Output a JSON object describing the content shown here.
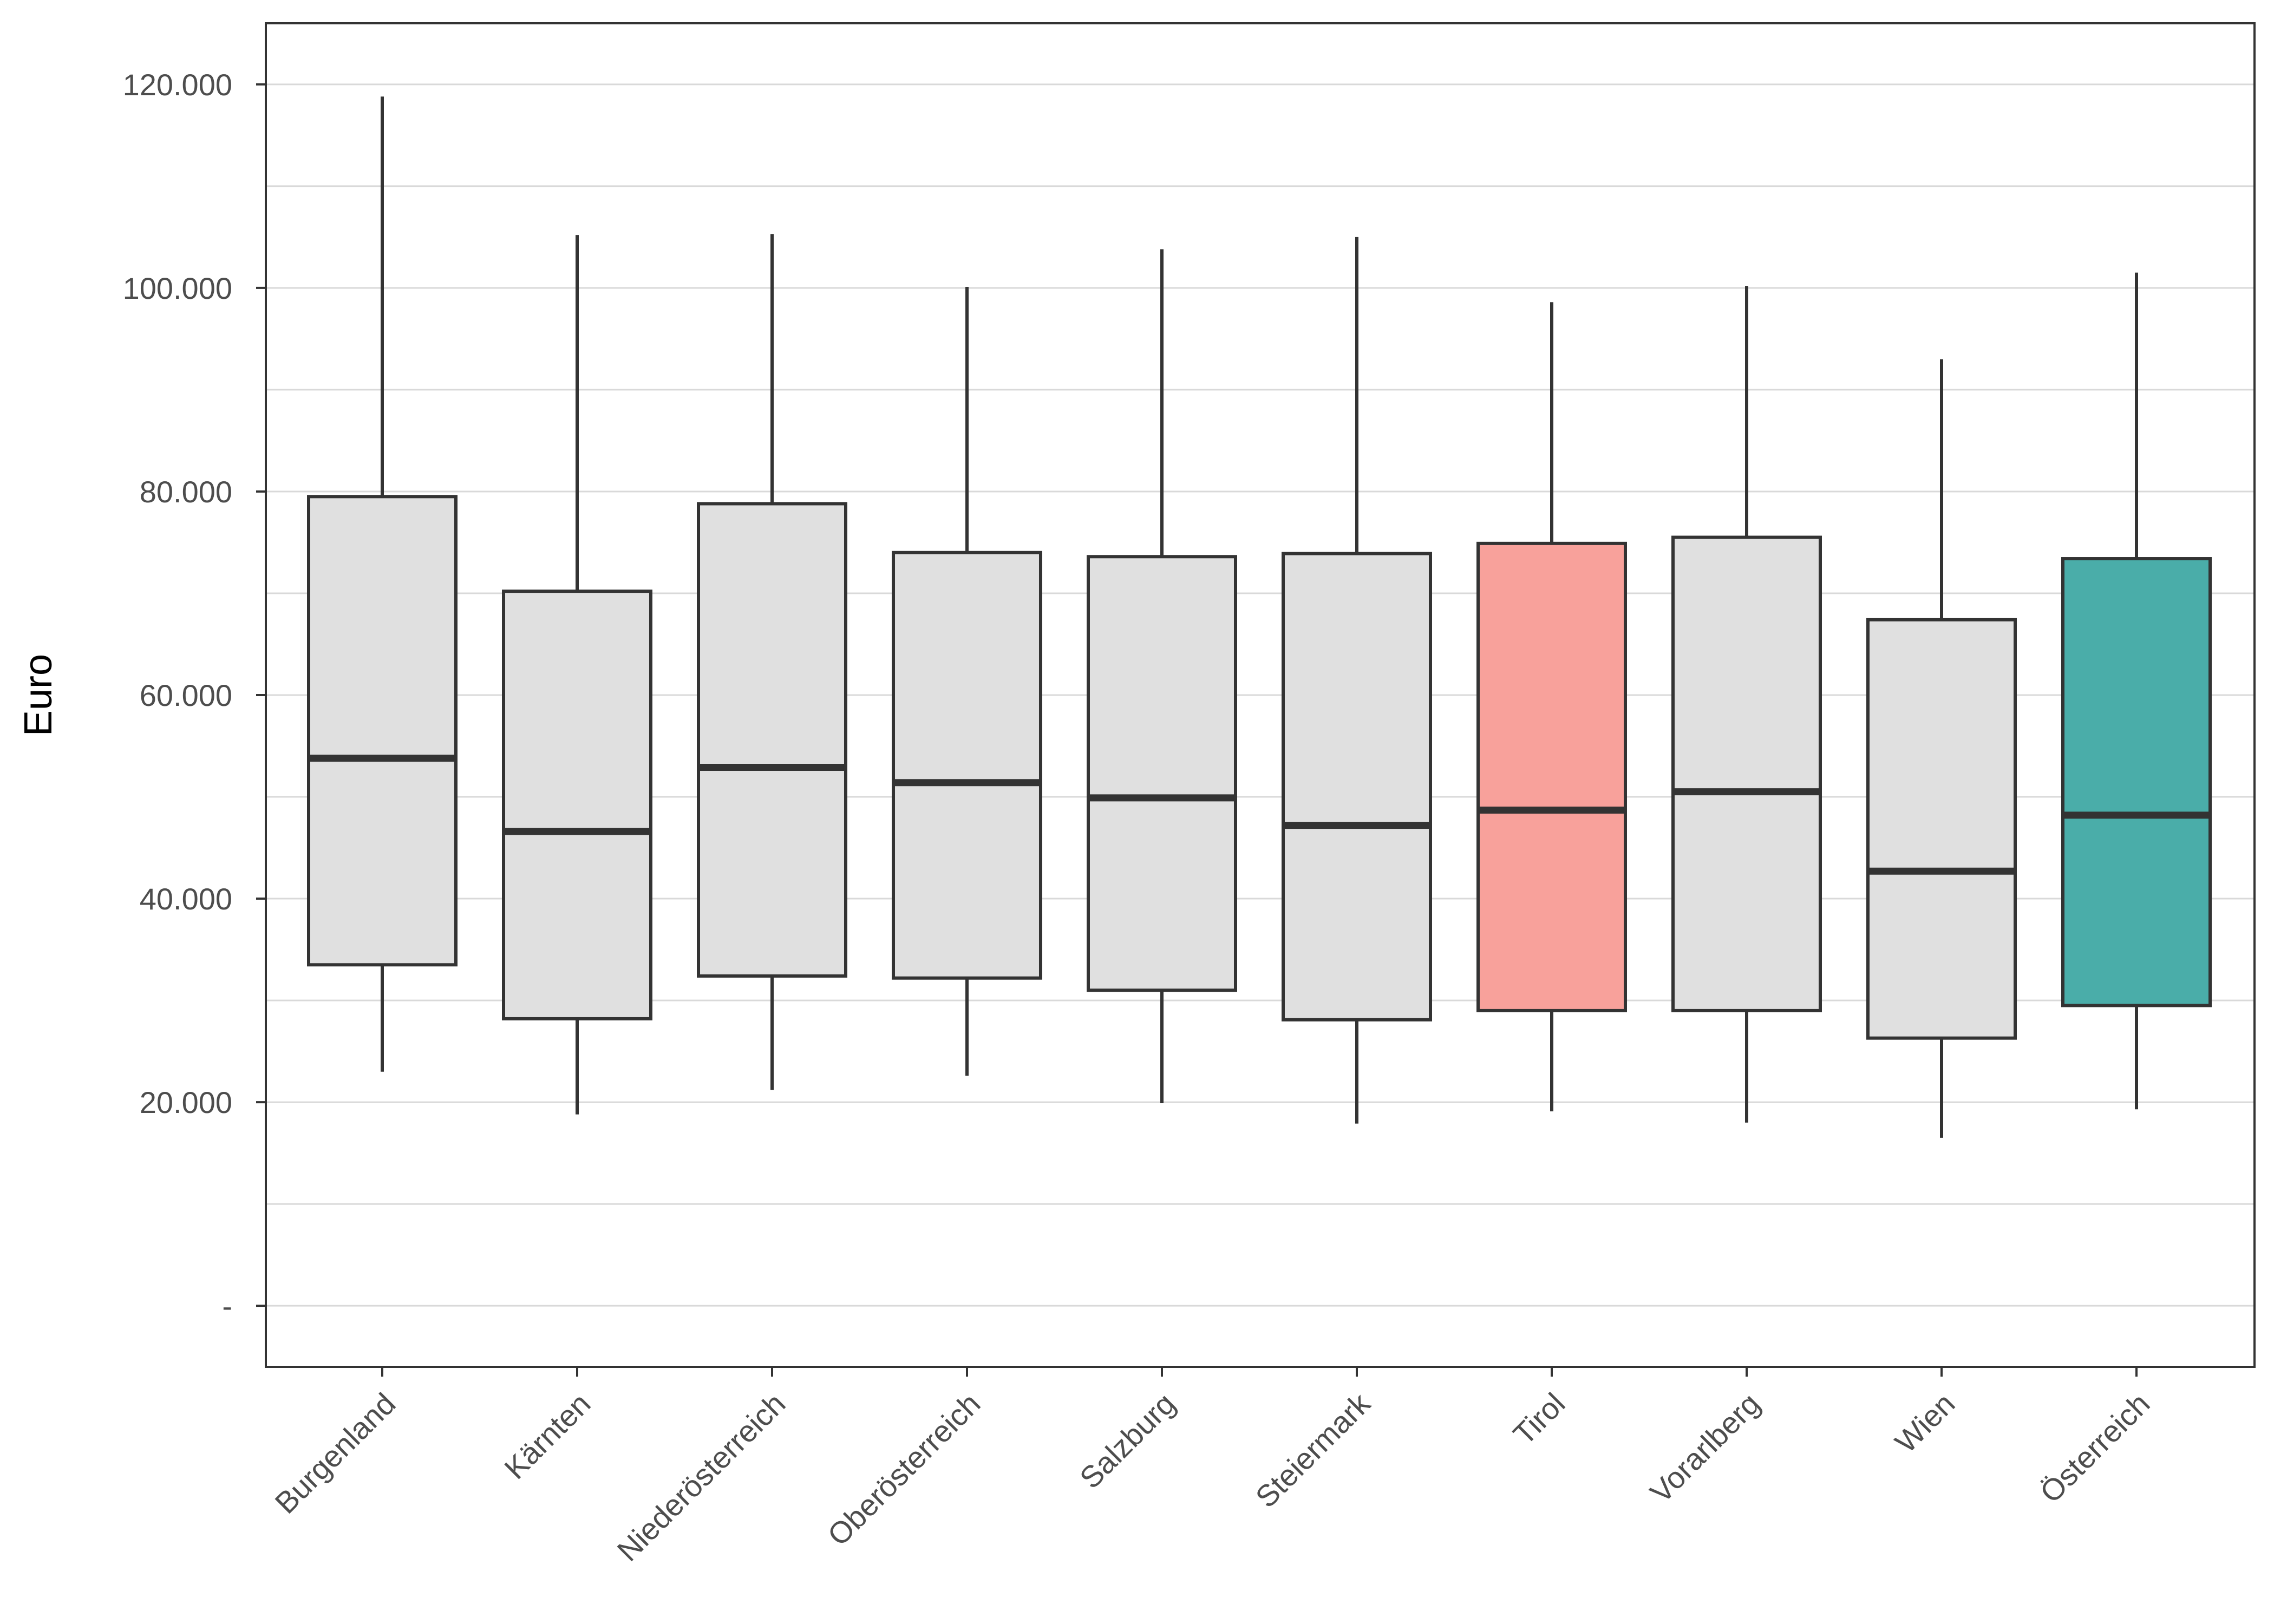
{
  "chart_data": {
    "type": "boxplot",
    "ylabel": "Euro",
    "xlabel": "",
    "ylim": [
      -6000,
      126000
    ],
    "y_ticks": [
      {
        "value": 0,
        "label": "-"
      },
      {
        "value": 20000,
        "label": "20.000"
      },
      {
        "value": 40000,
        "label": "40.000"
      },
      {
        "value": 60000,
        "label": "60.000"
      },
      {
        "value": 80000,
        "label": "80.000"
      },
      {
        "value": 100000,
        "label": "100.000"
      },
      {
        "value": 120000,
        "label": "120.000"
      }
    ],
    "minor_gridlines": [
      10000,
      30000,
      50000,
      70000,
      90000,
      110000
    ],
    "grid": true,
    "categories": [
      "Burgenland",
      "Kärnten",
      "Niederösterreich",
      "Oberösterreich",
      "Salzburg",
      "Steiermark",
      "Tirol",
      "Vorarlberg",
      "Wien",
      "Österreich"
    ],
    "boxes": [
      {
        "category": "Burgenland",
        "whisker_low": 23000,
        "q1": 33500,
        "median": 53800,
        "q3": 79500,
        "whisker_high": 118800,
        "color": "#e0e0e0"
      },
      {
        "category": "Kärnten",
        "whisker_low": 18800,
        "q1": 28200,
        "median": 46600,
        "q3": 70200,
        "whisker_high": 105200,
        "color": "#e0e0e0"
      },
      {
        "category": "Niederösterreich",
        "whisker_low": 21200,
        "q1": 32400,
        "median": 52900,
        "q3": 78800,
        "whisker_high": 105300,
        "color": "#e0e0e0"
      },
      {
        "category": "Oberösterreich",
        "whisker_low": 22600,
        "q1": 32200,
        "median": 51400,
        "q3": 74000,
        "whisker_high": 100100,
        "color": "#e0e0e0"
      },
      {
        "category": "Salzburg",
        "whisker_low": 19900,
        "q1": 31000,
        "median": 49900,
        "q3": 73600,
        "whisker_high": 103800,
        "color": "#e0e0e0"
      },
      {
        "category": "Steiermark",
        "whisker_low": 17900,
        "q1": 28100,
        "median": 47200,
        "q3": 73900,
        "whisker_high": 105000,
        "color": "#e0e0e0"
      },
      {
        "category": "Tirol",
        "whisker_low": 19100,
        "q1": 29000,
        "median": 48700,
        "q3": 74900,
        "whisker_high": 98600,
        "color": "#f8a19b"
      },
      {
        "category": "Vorarlberg",
        "whisker_low": 18000,
        "q1": 29000,
        "median": 50500,
        "q3": 75500,
        "whisker_high": 100200,
        "color": "#e0e0e0"
      },
      {
        "category": "Wien",
        "whisker_low": 16500,
        "q1": 26300,
        "median": 42700,
        "q3": 67400,
        "whisker_high": 93000,
        "color": "#e0e0e0"
      },
      {
        "category": "Österreich",
        "whisker_low": 19300,
        "q1": 29500,
        "median": 48200,
        "q3": 73400,
        "whisker_high": 101500,
        "color": "#4aada9"
      }
    ],
    "colors": {
      "box_default": "#e0e0e0",
      "box_outline": "#333333",
      "gridline": "#d9d9d9",
      "panel_border": "#333333",
      "highlight_tirol": "#f8a19b",
      "highlight_oesterreich": "#4aada9"
    }
  }
}
